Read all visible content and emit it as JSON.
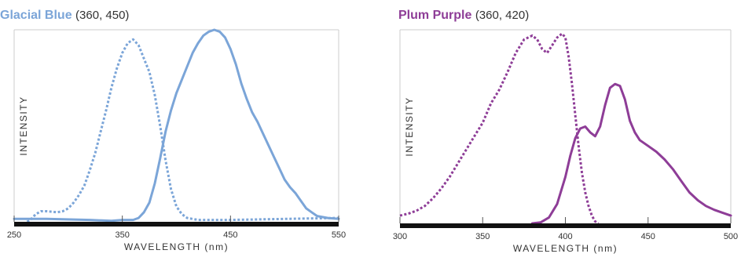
{
  "charts": {
    "left": {
      "name": "Glacial Blue",
      "ex_em": "(360, 450)",
      "color": "#7ba5d8"
    },
    "right": {
      "name": "Plum Purple",
      "ex_em": "(360, 420)",
      "color": "#8e3d97"
    }
  },
  "chart_data": [
    {
      "type": "line",
      "title": "Glacial Blue (360, 450)",
      "xlabel": "WAVELENGTH (nm)",
      "ylabel": "INTENSITY",
      "xlim": [
        250,
        550
      ],
      "ylim": [
        0,
        100
      ],
      "xticks": [
        250,
        350,
        450,
        550
      ],
      "grid": false,
      "series": [
        {
          "role": "excitation",
          "style": "dotted",
          "color": "#7ba5d8",
          "points": [
            [
              262,
              0
            ],
            [
              265,
              1
            ],
            [
              270,
              4
            ],
            [
              275,
              5.5
            ],
            [
              280,
              5.5
            ],
            [
              290,
              5
            ],
            [
              295,
              5.5
            ],
            [
              300,
              7
            ],
            [
              305,
              10
            ],
            [
              310,
              14
            ],
            [
              315,
              19
            ],
            [
              320,
              27
            ],
            [
              325,
              36
            ],
            [
              330,
              47
            ],
            [
              335,
              58
            ],
            [
              340,
              70
            ],
            [
              345,
              80
            ],
            [
              350,
              88
            ],
            [
              355,
              93
            ],
            [
              360,
              95
            ],
            [
              365,
              92
            ],
            [
              370,
              85
            ],
            [
              375,
              78
            ],
            [
              380,
              66
            ],
            [
              385,
              50
            ],
            [
              390,
              32
            ],
            [
              395,
              17
            ],
            [
              400,
              8
            ],
            [
              405,
              4
            ],
            [
              410,
              2
            ],
            [
              420,
              1
            ],
            [
              450,
              1
            ],
            [
              500,
              1.5
            ],
            [
              550,
              2
            ]
          ]
        },
        {
          "role": "emission",
          "style": "solid",
          "color": "#7ba5d8",
          "points": [
            [
              250,
              1.5
            ],
            [
              280,
              1.5
            ],
            [
              320,
              1
            ],
            [
              340,
              0.5
            ],
            [
              350,
              1
            ],
            [
              360,
              1
            ],
            [
              365,
              2
            ],
            [
              370,
              5
            ],
            [
              375,
              10
            ],
            [
              380,
              20
            ],
            [
              385,
              33
            ],
            [
              390,
              47
            ],
            [
              395,
              58
            ],
            [
              400,
              67
            ],
            [
              405,
              74
            ],
            [
              410,
              81
            ],
            [
              415,
              88
            ],
            [
              420,
              93
            ],
            [
              425,
              97
            ],
            [
              430,
              99
            ],
            [
              435,
              100
            ],
            [
              440,
              99
            ],
            [
              445,
              96
            ],
            [
              450,
              90
            ],
            [
              455,
              82
            ],
            [
              460,
              72
            ],
            [
              465,
              64
            ],
            [
              470,
              57
            ],
            [
              475,
              52
            ],
            [
              480,
              46
            ],
            [
              485,
              40
            ],
            [
              490,
              34
            ],
            [
              495,
              28
            ],
            [
              500,
              22
            ],
            [
              505,
              18
            ],
            [
              510,
              15
            ],
            [
              515,
              11
            ],
            [
              520,
              7
            ],
            [
              525,
              5
            ],
            [
              530,
              3
            ],
            [
              540,
              2
            ],
            [
              550,
              1.5
            ]
          ]
        }
      ]
    },
    {
      "type": "line",
      "title": "Plum Purple (360, 420)",
      "xlabel": "WAVELENGTH (nm)",
      "ylabel": "INTENSITY",
      "xlim": [
        300,
        500
      ],
      "ylim": [
        0,
        100
      ],
      "xticks": [
        300,
        350,
        400,
        450,
        500
      ],
      "grid": false,
      "series": [
        {
          "role": "excitation",
          "style": "dotted",
          "color": "#8e3d97",
          "points": [
            [
              300,
              4
            ],
            [
              305,
              5
            ],
            [
              310,
              6.5
            ],
            [
              315,
              9
            ],
            [
              320,
              13
            ],
            [
              325,
              18
            ],
            [
              330,
              24
            ],
            [
              335,
              31
            ],
            [
              340,
              38
            ],
            [
              345,
              45
            ],
            [
              350,
              52
            ],
            [
              355,
              62
            ],
            [
              360,
              69
            ],
            [
              365,
              78
            ],
            [
              370,
              88
            ],
            [
              375,
              95
            ],
            [
              380,
              97
            ],
            [
              383,
              95
            ],
            [
              386,
              90
            ],
            [
              389,
              88
            ],
            [
              392,
              92
            ],
            [
              395,
              96
            ],
            [
              398,
              98
            ],
            [
              400,
              96
            ],
            [
              402,
              86
            ],
            [
              404,
              72
            ],
            [
              406,
              56
            ],
            [
              408,
              40
            ],
            [
              410,
              26
            ],
            [
              412,
              16
            ],
            [
              414,
              9
            ],
            [
              416,
              4
            ],
            [
              418,
              1
            ],
            [
              420,
              0
            ]
          ]
        },
        {
          "role": "emission",
          "style": "solid",
          "color": "#8e3d97",
          "points": [
            [
              380,
              0
            ],
            [
              385,
              0.5
            ],
            [
              390,
              3
            ],
            [
              395,
              10
            ],
            [
              400,
              24
            ],
            [
              403,
              35
            ],
            [
              406,
              44
            ],
            [
              409,
              49
            ],
            [
              412,
              50
            ],
            [
              415,
              47
            ],
            [
              418,
              45
            ],
            [
              421,
              50
            ],
            [
              424,
              61
            ],
            [
              427,
              70
            ],
            [
              430,
              72
            ],
            [
              433,
              71
            ],
            [
              436,
              64
            ],
            [
              439,
              53
            ],
            [
              442,
              47
            ],
            [
              445,
              43
            ],
            [
              450,
              40
            ],
            [
              455,
              37
            ],
            [
              460,
              33
            ],
            [
              465,
              28
            ],
            [
              470,
              22
            ],
            [
              475,
              16
            ],
            [
              480,
              12
            ],
            [
              485,
              9
            ],
            [
              490,
              7
            ],
            [
              495,
              5.5
            ],
            [
              500,
              4
            ]
          ]
        }
      ]
    }
  ]
}
